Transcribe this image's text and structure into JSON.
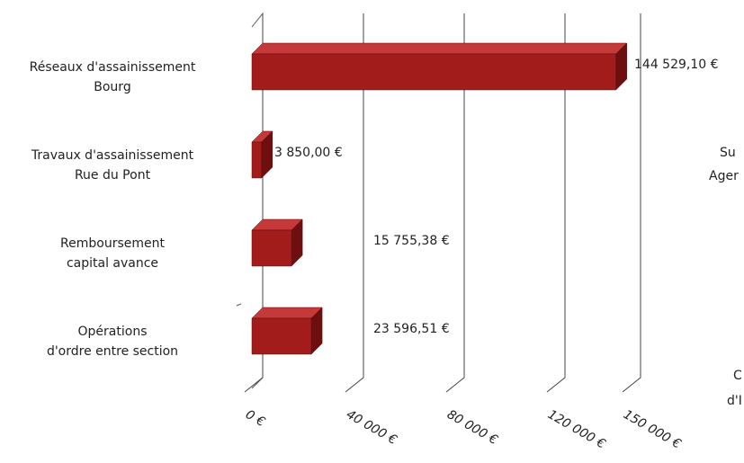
{
  "chart_data": {
    "type": "bar3d_horizontal",
    "categories": [
      "Réseaux d'assainissement\nBourg",
      "Travaux d'assainissement\nRue du Pont",
      "Remboursement\ncapital avance",
      "Opérations\nd'ordre entre section"
    ],
    "values": [
      144529.1,
      3850.0,
      15755.38,
      23596.51
    ],
    "value_labels": [
      "144 529,10 €",
      "3 850,00 €",
      "15 755,38 €",
      "23 596,51 €"
    ],
    "color": "#a31c1c",
    "xlim": [
      0,
      160000
    ],
    "xticks": [
      {
        "value": 0,
        "label": "0 €"
      },
      {
        "value": 40000,
        "label": "40 000 €"
      },
      {
        "value": 80000,
        "label": "80 000 €"
      },
      {
        "value": 120000,
        "label": "120 000 €"
      },
      {
        "value": 150000,
        "label": "150 000 €"
      }
    ],
    "grid": true,
    "cropped_labels": [
      "Su",
      "Ager",
      "C",
      "d'I"
    ]
  }
}
